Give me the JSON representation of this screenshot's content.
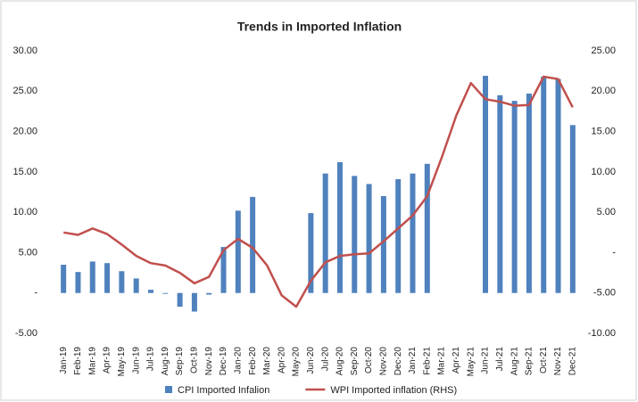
{
  "chart_data": {
    "type": "bar_line",
    "title": "Trends in Imported Inflation",
    "categories": [
      "Jan-19",
      "Feb-19",
      "Mar-19",
      "Apr-19",
      "May-19",
      "Jun-19",
      "Jul-19",
      "Aug-19",
      "Sep-19",
      "Oct-19",
      "Nov-19",
      "Dec-19",
      "Jan-20",
      "Feb-20",
      "Mar-20",
      "Apr-20",
      "May-20",
      "Jun-20",
      "Jul-20",
      "Aug-20",
      "Sep-20",
      "Oct-20",
      "Nov-20",
      "Dec-20",
      "Jan-21",
      "Feb-21",
      "Mar-21",
      "Apr-21",
      "May-21",
      "Jun-21",
      "Jul-21",
      "Aug-21",
      "Sep-21",
      "Oct-21",
      "Nov-21",
      "Dec-21"
    ],
    "series": [
      {
        "name": "CPI Imported Infalion",
        "color": "#4f81bd",
        "type": "bar",
        "axis": "y",
        "values": [
          3.5,
          2.6,
          3.9,
          3.7,
          2.7,
          1.8,
          0.4,
          -0.1,
          -1.7,
          -2.3,
          -0.2,
          5.7,
          10.2,
          11.9,
          null,
          null,
          null,
          9.9,
          14.8,
          16.2,
          14.5,
          13.5,
          12.0,
          14.1,
          14.8,
          16.0,
          null,
          null,
          null,
          26.9,
          24.5,
          23.8,
          24.7,
          26.8,
          26.5,
          20.8
        ]
      },
      {
        "name": "WPI Imported inflation (RHS)",
        "color": "#c0504d",
        "type": "line",
        "axis": "y2",
        "values": [
          2.5,
          2.2,
          3.0,
          2.3,
          1.0,
          -0.4,
          -1.3,
          -1.6,
          -2.5,
          -3.8,
          -3.0,
          0.3,
          1.7,
          0.6,
          -1.6,
          -5.3,
          -6.7,
          -3.5,
          -1.2,
          -0.4,
          -0.2,
          -0.1,
          1.4,
          3.0,
          4.6,
          7.0,
          11.8,
          17.0,
          21.0,
          19.0,
          18.7,
          18.2,
          18.3,
          21.8,
          21.5,
          18.0
        ]
      }
    ],
    "ylim": [
      -5,
      30
    ],
    "yticks": [
      {
        "value": -5,
        "label": "-5.00"
      },
      {
        "value": 0,
        "label": "-"
      },
      {
        "value": 5,
        "label": "5.00"
      },
      {
        "value": 10,
        "label": "10.00"
      },
      {
        "value": 15,
        "label": "15.00"
      },
      {
        "value": 20,
        "label": "20.00"
      },
      {
        "value": 25,
        "label": "25.00"
      },
      {
        "value": 30,
        "label": "30.00"
      }
    ],
    "y2lim": [
      -10,
      25
    ],
    "y2ticks": [
      {
        "value": -10,
        "label": "-10.00"
      },
      {
        "value": -5,
        "label": "-5.00"
      },
      {
        "value": 0,
        "label": "-"
      },
      {
        "value": 5,
        "label": "5.00"
      },
      {
        "value": 10,
        "label": "10.00"
      },
      {
        "value": 15,
        "label": "15.00"
      },
      {
        "value": 20,
        "label": "20.00"
      },
      {
        "value": 25,
        "label": "25.00"
      }
    ],
    "legend": "bottom"
  }
}
